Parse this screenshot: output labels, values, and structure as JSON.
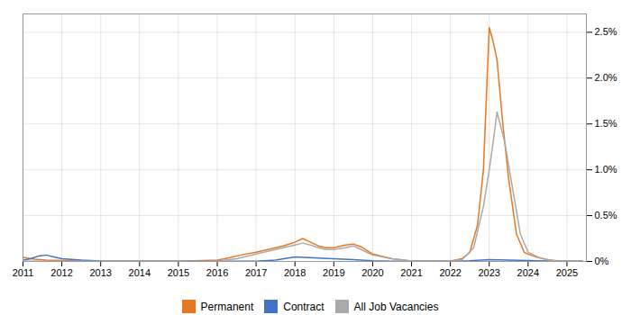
{
  "chart_data": {
    "type": "line",
    "xlim": [
      2011,
      2025.5
    ],
    "xticks": [
      2011,
      2012,
      2013,
      2014,
      2015,
      2016,
      2017,
      2018,
      2019,
      2020,
      2021,
      2022,
      2023,
      2024,
      2025
    ],
    "ylim": [
      0,
      0.027
    ],
    "yticks": [
      {
        "value": 0,
        "label": "0%"
      },
      {
        "value": 0.005,
        "label": "0.5%"
      },
      {
        "value": 0.01,
        "label": "1.0%"
      },
      {
        "value": 0.015,
        "label": "1.5%"
      },
      {
        "value": 0.02,
        "label": "2.0%"
      },
      {
        "value": 0.025,
        "label": "2.5%"
      }
    ],
    "grid": true,
    "legend": "bottom",
    "series": [
      {
        "name": "Permanent",
        "color": "#E87722",
        "x": [
          2011.0,
          2011.3,
          2011.6,
          2012.0,
          2012.5,
          2013.0,
          2014.0,
          2015.0,
          2016.0,
          2016.3,
          2016.6,
          2017.0,
          2017.3,
          2017.7,
          2018.0,
          2018.2,
          2018.4,
          2018.6,
          2018.8,
          2019.0,
          2019.3,
          2019.5,
          2019.7,
          2020.0,
          2020.5,
          2021.0,
          2021.5,
          2022.0,
          2022.3,
          2022.5,
          2022.7,
          2022.85,
          2023.0,
          2023.1,
          2023.2,
          2023.35,
          2023.5,
          2023.7,
          2023.9,
          2024.0,
          2024.2,
          2024.5,
          2024.8,
          2025.0,
          2025.4
        ],
        "values": [
          0.00045,
          0.00025,
          0.00015,
          0.0001,
          5e-05,
          3e-05,
          3e-05,
          3e-05,
          0.00015,
          0.0004,
          0.0007,
          0.001,
          0.0013,
          0.0017,
          0.0021,
          0.0025,
          0.0021,
          0.0017,
          0.0015,
          0.0015,
          0.0018,
          0.0019,
          0.0016,
          0.0008,
          0.0003,
          5e-05,
          3e-05,
          5e-05,
          0.0003,
          0.001,
          0.004,
          0.01,
          0.0255,
          0.024,
          0.022,
          0.015,
          0.009,
          0.003,
          0.001,
          0.0008,
          0.0005,
          0.0002,
          5e-05,
          3e-05,
          3e-05
        ]
      },
      {
        "name": "Contract",
        "color": "#4472C4",
        "x": [
          2011.0,
          2011.2,
          2011.4,
          2011.6,
          2011.8,
          2012.0,
          2012.5,
          2013.0,
          2014.0,
          2015.0,
          2016.0,
          2017.0,
          2017.5,
          2018.0,
          2018.5,
          2019.0,
          2019.5,
          2020.0,
          2020.5,
          2021.0,
          2022.0,
          2022.5,
          2023.0,
          2023.5,
          2024.0,
          2024.5,
          2025.0,
          2025.4
        ],
        "values": [
          0.00015,
          0.0003,
          0.0006,
          0.0007,
          0.0005,
          0.0003,
          0.00015,
          5e-05,
          3e-05,
          3e-05,
          3e-05,
          3e-05,
          0.00015,
          0.0005,
          0.0004,
          0.0003,
          0.0002,
          8e-05,
          3e-05,
          3e-05,
          3e-05,
          8e-05,
          0.0002,
          0.00015,
          0.0001,
          5e-05,
          3e-05,
          3e-05
        ]
      },
      {
        "name": "All Job Vacancies",
        "color": "#AAAAAA",
        "x": [
          2011.0,
          2012.0,
          2013.0,
          2014.0,
          2015.0,
          2016.0,
          2016.5,
          2017.0,
          2017.5,
          2018.0,
          2018.2,
          2018.4,
          2018.6,
          2018.8,
          2019.0,
          2019.3,
          2019.5,
          2019.7,
          2020.0,
          2020.5,
          2021.0,
          2021.5,
          2022.0,
          2022.3,
          2022.6,
          2022.85,
          2023.0,
          2023.1,
          2023.2,
          2023.4,
          2023.6,
          2023.8,
          2024.0,
          2024.3,
          2024.6,
          2024.9,
          2025.0,
          2025.4
        ],
        "values": [
          3e-05,
          3e-05,
          3e-05,
          3e-05,
          3e-05,
          3e-05,
          0.0003,
          0.0008,
          0.0013,
          0.0018,
          0.002,
          0.0018,
          0.0015,
          0.0013,
          0.0013,
          0.0015,
          0.0017,
          0.0013,
          0.0007,
          0.0003,
          5e-05,
          3e-05,
          3e-05,
          0.0002,
          0.0015,
          0.006,
          0.01,
          0.013,
          0.0163,
          0.013,
          0.008,
          0.003,
          0.001,
          0.0004,
          0.0001,
          3e-05,
          3e-05,
          3e-05
        ]
      }
    ]
  }
}
